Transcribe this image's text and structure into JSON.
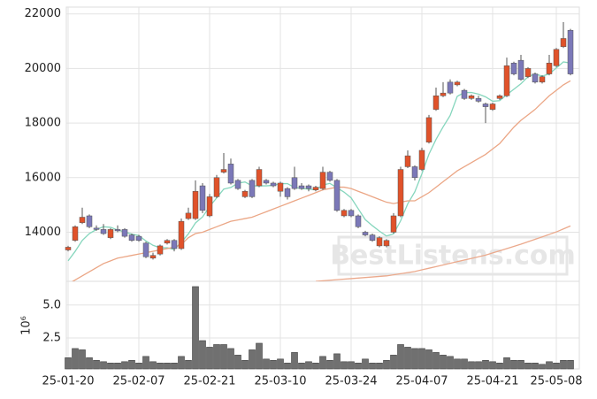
{
  "chart_data": {
    "type": "candlestick",
    "categories": [
      "25-01-20",
      null,
      null,
      null,
      null,
      null,
      null,
      null,
      null,
      null,
      "25-02-07",
      null,
      null,
      null,
      null,
      null,
      null,
      null,
      null,
      null,
      "25-02-21",
      null,
      null,
      null,
      null,
      null,
      null,
      null,
      null,
      null,
      "25-03-10",
      null,
      null,
      null,
      null,
      null,
      null,
      null,
      null,
      null,
      "25-03-24",
      null,
      null,
      null,
      null,
      null,
      null,
      null,
      null,
      null,
      "25-04-07",
      null,
      null,
      null,
      null,
      null,
      null,
      null,
      null,
      null,
      "25-04-21",
      null,
      null,
      null,
      null,
      null,
      null,
      null,
      null,
      "25-05-08",
      null,
      null
    ],
    "open": [
      13350,
      13700,
      14350,
      14600,
      14150,
      14100,
      13800,
      14100,
      14100,
      13900,
      13850,
      13600,
      13050,
      13200,
      13600,
      13700,
      13400,
      14500,
      14500,
      15700,
      14600,
      15300,
      16200,
      16500,
      15900,
      15300,
      15900,
      15700,
      15900,
      15800,
      15500,
      15600,
      16000,
      15700,
      15700,
      15550,
      15600,
      16200,
      15900,
      14600,
      14800,
      14600,
      14000,
      13900,
      13500,
      13500,
      14000,
      14600,
      16400,
      16400,
      16300,
      17300,
      18500,
      19000,
      19500,
      19400,
      19200,
      18900,
      18900,
      18700,
      18500,
      18900,
      19000,
      20200,
      20300,
      19700,
      19800,
      19500,
      19800,
      20100,
      20800,
      21400
    ],
    "high": [
      13500,
      14250,
      14900,
      14650,
      14250,
      14300,
      14150,
      14250,
      14150,
      13950,
      13900,
      13650,
      13250,
      13550,
      13750,
      13750,
      14500,
      14900,
      15900,
      15800,
      15400,
      16100,
      16900,
      16700,
      15950,
      15550,
      15950,
      16400,
      15950,
      15850,
      15850,
      15650,
      16400,
      15800,
      15750,
      15700,
      16400,
      16250,
      15950,
      14850,
      14850,
      14650,
      14050,
      13950,
      13850,
      13750,
      14700,
      16400,
      17000,
      16450,
      17100,
      18300,
      19300,
      19500,
      19600,
      19550,
      19250,
      19050,
      19000,
      18750,
      18750,
      19050,
      20400,
      20250,
      20500,
      20050,
      19850,
      19750,
      20500,
      20750,
      21700,
      21450
    ],
    "low": [
      13300,
      13650,
      14300,
      14150,
      14050,
      13900,
      13750,
      14000,
      13800,
      13650,
      13650,
      13050,
      13000,
      13150,
      13550,
      13300,
      13350,
      14450,
      14450,
      14700,
      14550,
      15250,
      16150,
      15750,
      15550,
      15250,
      15250,
      15650,
      15750,
      15650,
      15300,
      15200,
      15550,
      15550,
      15500,
      15500,
      15550,
      15850,
      14750,
      14550,
      14550,
      14150,
      13850,
      13650,
      13450,
      13450,
      13950,
      14550,
      16350,
      15900,
      16250,
      17250,
      18450,
      18950,
      19050,
      19350,
      18850,
      18850,
      18750,
      18000,
      18450,
      18850,
      18950,
      19750,
      19550,
      19650,
      19450,
      19450,
      19750,
      20050,
      20750,
      19750
    ],
    "close": [
      13450,
      14200,
      14550,
      14200,
      14100,
      13950,
      14100,
      14050,
      13850,
      13700,
      13700,
      13100,
      13150,
      13500,
      13700,
      13400,
      14400,
      14700,
      15500,
      14800,
      15300,
      16000,
      16300,
      15800,
      15600,
      15500,
      15300,
      16300,
      15800,
      15700,
      15800,
      15300,
      15600,
      15600,
      15600,
      15650,
      16200,
      15900,
      14800,
      14800,
      14600,
      14200,
      13900,
      13700,
      13800,
      13700,
      14600,
      16300,
      16800,
      16000,
      17000,
      18200,
      19000,
      19100,
      19100,
      19500,
      18900,
      19000,
      18800,
      18600,
      18700,
      19000,
      20100,
      19800,
      19600,
      20000,
      19500,
      19700,
      20200,
      20700,
      21100,
      19800
    ],
    "up_color": "#e0522a",
    "down_color": "#7b78b8",
    "series": [
      {
        "color": "#86d6bd",
        "values": [
          12950,
          13300,
          13700,
          13950,
          14100,
          14200,
          14180,
          14080,
          14010,
          13930,
          13880,
          13680,
          13520,
          13430,
          13430,
          13370,
          13630,
          13940,
          14340,
          14560,
          14940,
          15260,
          15580,
          15640,
          15800,
          15840,
          15700,
          15700,
          15700,
          15720,
          15780,
          15780,
          15640,
          15600,
          15580,
          15550,
          15730,
          15790,
          15630,
          15470,
          15260,
          14860,
          14460,
          14240,
          14040,
          13860,
          13940,
          14420,
          15040,
          15480,
          16140,
          16860,
          17400,
          17860,
          18280,
          18980,
          19120,
          19120,
          19060,
          18960,
          18800,
          18820,
          19040,
          19240,
          19440,
          19700,
          19800,
          19720,
          19800,
          20020,
          20240,
          20200
        ]
      },
      {
        "color": "#eba685",
        "values": [
          12100,
          12250,
          12400,
          12550,
          12700,
          12850,
          12950,
          13050,
          13100,
          13150,
          13200,
          13250,
          13300,
          13350,
          13400,
          13450,
          13550,
          13800,
          13950,
          14000,
          14100,
          14200,
          14300,
          14400,
          14450,
          14500,
          14550,
          14650,
          14750,
          14850,
          14950,
          15050,
          15150,
          15250,
          15350,
          15450,
          15550,
          15600,
          15650,
          15650,
          15600,
          15500,
          15400,
          15300,
          15200,
          15100,
          15050,
          15100,
          15150,
          15150,
          15300,
          15450,
          15650,
          15850,
          16050,
          16250,
          16400,
          16550,
          16700,
          16850,
          17050,
          17250,
          17550,
          17850,
          18100,
          18300,
          18500,
          18750,
          19000,
          19200,
          19400,
          19550
        ]
      },
      {
        "color": "#eba98c",
        "values": [
          null,
          null,
          null,
          null,
          null,
          null,
          null,
          null,
          null,
          null,
          null,
          null,
          null,
          null,
          null,
          null,
          null,
          null,
          null,
          null,
          null,
          null,
          null,
          null,
          null,
          null,
          null,
          null,
          null,
          null,
          null,
          null,
          null,
          null,
          null,
          12200,
          12220,
          12240,
          12260,
          12280,
          12300,
          12320,
          12340,
          12360,
          12380,
          12400,
          12440,
          12480,
          12520,
          12560,
          12620,
          12680,
          12740,
          12800,
          12860,
          12920,
          12980,
          13040,
          13100,
          13160,
          13240,
          13320,
          13400,
          13480,
          13560,
          13650,
          13740,
          13830,
          13920,
          14010,
          14120,
          14230
        ]
      }
    ],
    "ylim": [
      12200,
      22250
    ],
    "yticks": [
      14000,
      16000,
      18000,
      20000,
      22000
    ],
    "grid": true,
    "watermark": "BestListens.com",
    "volume": {
      "type": "bar",
      "color": "#707070",
      "values": [
        1.0,
        1.7,
        1.6,
        1.0,
        0.8,
        0.7,
        0.6,
        0.6,
        0.7,
        0.8,
        0.6,
        1.1,
        0.7,
        0.6,
        0.6,
        0.6,
        1.1,
        0.8,
        6.4,
        2.3,
        1.8,
        2.0,
        2.0,
        1.7,
        1.2,
        0.8,
        1.6,
        2.1,
        0.9,
        0.8,
        0.9,
        0.6,
        1.4,
        0.6,
        0.7,
        0.6,
        1.1,
        0.8,
        1.3,
        0.7,
        0.7,
        0.6,
        0.9,
        0.6,
        0.6,
        0.8,
        1.2,
        2.0,
        1.8,
        1.7,
        1.7,
        1.6,
        1.4,
        1.2,
        1.1,
        0.9,
        0.9,
        0.7,
        0.7,
        0.8,
        0.7,
        0.6,
        1.0,
        0.8,
        0.8,
        0.6,
        0.6,
        0.5,
        0.7,
        0.6,
        0.8,
        0.8
      ],
      "ylim": [
        0.15,
        6.8
      ],
      "yticks": [
        2.5,
        {
          "value": 5,
          "label": "5.0"
        }
      ],
      "ylabel": "10⁶"
    }
  }
}
